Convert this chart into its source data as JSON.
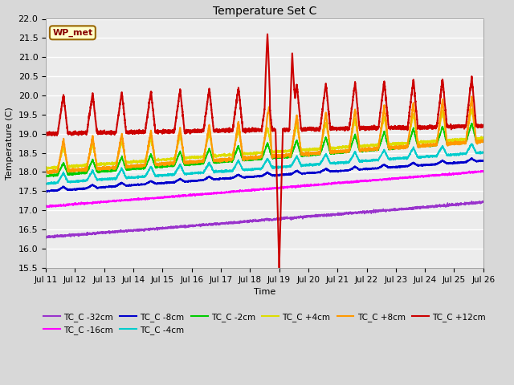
{
  "title": "Temperature Set C",
  "xlabel": "Time",
  "ylabel": "Temperature (C)",
  "ylim": [
    15.5,
    22.0
  ],
  "xlim": [
    0,
    15
  ],
  "x_tick_labels": [
    "Jul 11",
    "Jul 12",
    "Jul 13",
    "Jul 14",
    "Jul 15",
    "Jul 16",
    "Jul 17",
    "Jul 18",
    "Jul 19",
    "Jul 20",
    "Jul 21",
    "Jul 22",
    "Jul 23",
    "Jul 24",
    "Jul 25",
    "Jul 26"
  ],
  "annotation_text": "WP_met",
  "annotation_bg": "#ffffcc",
  "annotation_border": "#996600",
  "background_color": "#d8d8d8",
  "plot_bg_color": "#ececec",
  "series_colors": {
    "TC_C -32cm": "#9933cc",
    "TC_C -16cm": "#ff00ff",
    "TC_C -8cm": "#0000cc",
    "TC_C -4cm": "#00cccc",
    "TC_C -2cm": "#00cc00",
    "TC_C +4cm": "#dddd00",
    "TC_C +8cm": "#ff9900",
    "TC_C +12cm": "#cc0000"
  },
  "series_linewidths": {
    "TC_C -32cm": 1.0,
    "TC_C -16cm": 1.0,
    "TC_C -8cm": 1.2,
    "TC_C -4cm": 1.2,
    "TC_C -2cm": 1.2,
    "TC_C +4cm": 1.2,
    "TC_C +8cm": 1.5,
    "TC_C +12cm": 1.5
  }
}
